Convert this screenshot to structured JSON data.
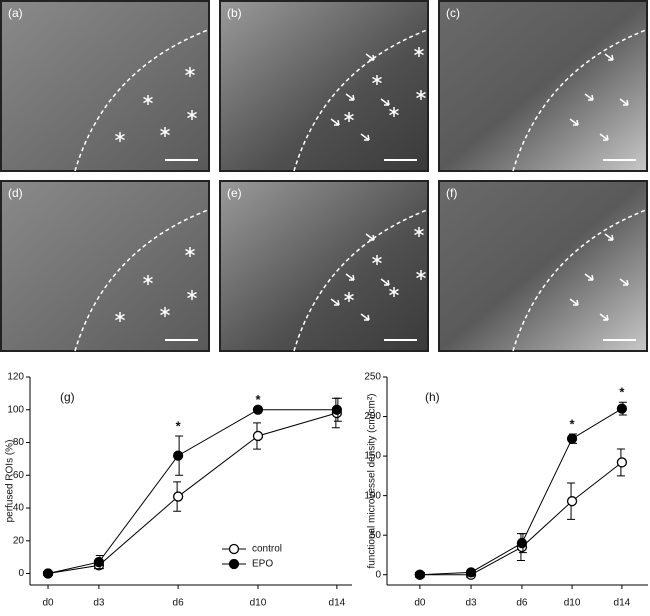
{
  "figure": {
    "panels": [
      {
        "label": "(a)"
      },
      {
        "label": "(b)"
      },
      {
        "label": "(c)"
      },
      {
        "label": "(d)"
      },
      {
        "label": "(e)"
      },
      {
        "label": "(f)"
      }
    ]
  },
  "chart_data": [
    {
      "type": "line",
      "panel_label": "(g)",
      "y_label": "perfused ROIs (%)",
      "categories": [
        "d0",
        "d3",
        "d6",
        "d10",
        "d14"
      ],
      "ylim": [
        -7,
        120
      ],
      "yticks": [
        0,
        20,
        40,
        60,
        80,
        100,
        120
      ],
      "series": [
        {
          "name": "control",
          "color": "#000000",
          "marker": "open",
          "values": [
            0,
            5,
            47,
            84,
            98
          ],
          "errors": [
            1,
            2,
            9,
            8,
            9
          ]
        },
        {
          "name": "EPO",
          "color": "#000000",
          "marker": "filled",
          "values": [
            0,
            7,
            72,
            100,
            100
          ],
          "errors": [
            1,
            4,
            12,
            0,
            7
          ]
        }
      ],
      "significance": [
        null,
        null,
        "*",
        "*",
        null
      ],
      "legend": "lower right"
    },
    {
      "type": "line",
      "panel_label": "(h)",
      "y_label": "functional microvessel density (cm/cm²)",
      "categories": [
        "d0",
        "d3",
        "d6",
        "d10",
        "d14"
      ],
      "ylim": [
        -13,
        250
      ],
      "yticks": [
        0,
        50,
        100,
        150,
        200,
        250
      ],
      "series": [
        {
          "name": "control",
          "color": "#000000",
          "marker": "open",
          "values": [
            0,
            0,
            35,
            93,
            142
          ],
          "errors": [
            3,
            3,
            17,
            23,
            17
          ]
        },
        {
          "name": "EPO",
          "color": "#000000",
          "marker": "filled",
          "values": [
            0,
            3,
            40,
            172,
            210
          ],
          "errors": [
            3,
            3,
            12,
            6,
            8
          ]
        }
      ],
      "significance": [
        null,
        null,
        null,
        "*",
        "*"
      ]
    }
  ]
}
